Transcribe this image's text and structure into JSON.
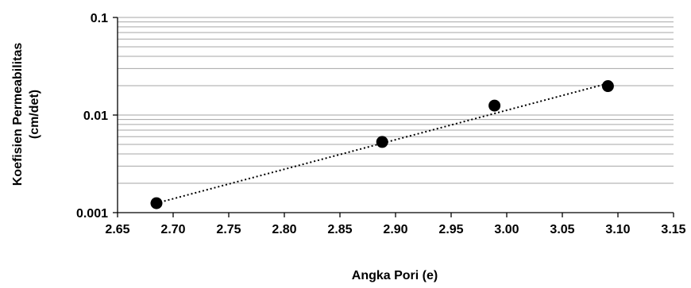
{
  "chart_data": {
    "type": "scatter",
    "xlabel": "Angka Pori (e)",
    "ylabel_lines": [
      "Koefisien Permeabilitas",
      "(cm/det)"
    ],
    "xlim": [
      2.65,
      3.15
    ],
    "ylim": [
      0.001,
      0.1
    ],
    "yscale": "log",
    "x_ticks": [
      "2.65",
      "2.70",
      "2.75",
      "2.80",
      "2.85",
      "2.90",
      "2.95",
      "3.00",
      "3.05",
      "3.10",
      "3.15"
    ],
    "y_ticks": [
      {
        "value": 0.1,
        "label": "0.1"
      },
      {
        "value": 0.01,
        "label": "0.01"
      },
      {
        "value": 0.001,
        "label": "0.001"
      }
    ],
    "grid": "horizontal minor + major (log)",
    "points": [
      {
        "x": 2.685,
        "y": 0.00125
      },
      {
        "x": 2.888,
        "y": 0.0053
      },
      {
        "x": 2.989,
        "y": 0.0125
      },
      {
        "x": 3.091,
        "y": 0.0198
      }
    ],
    "trendline": {
      "style": "dotted",
      "from": {
        "x": 2.685,
        "y": 0.00125
      },
      "to": {
        "x": 3.091,
        "y": 0.0211
      }
    },
    "marker_color": "#000000",
    "grid_color": "#a6a6a6"
  }
}
